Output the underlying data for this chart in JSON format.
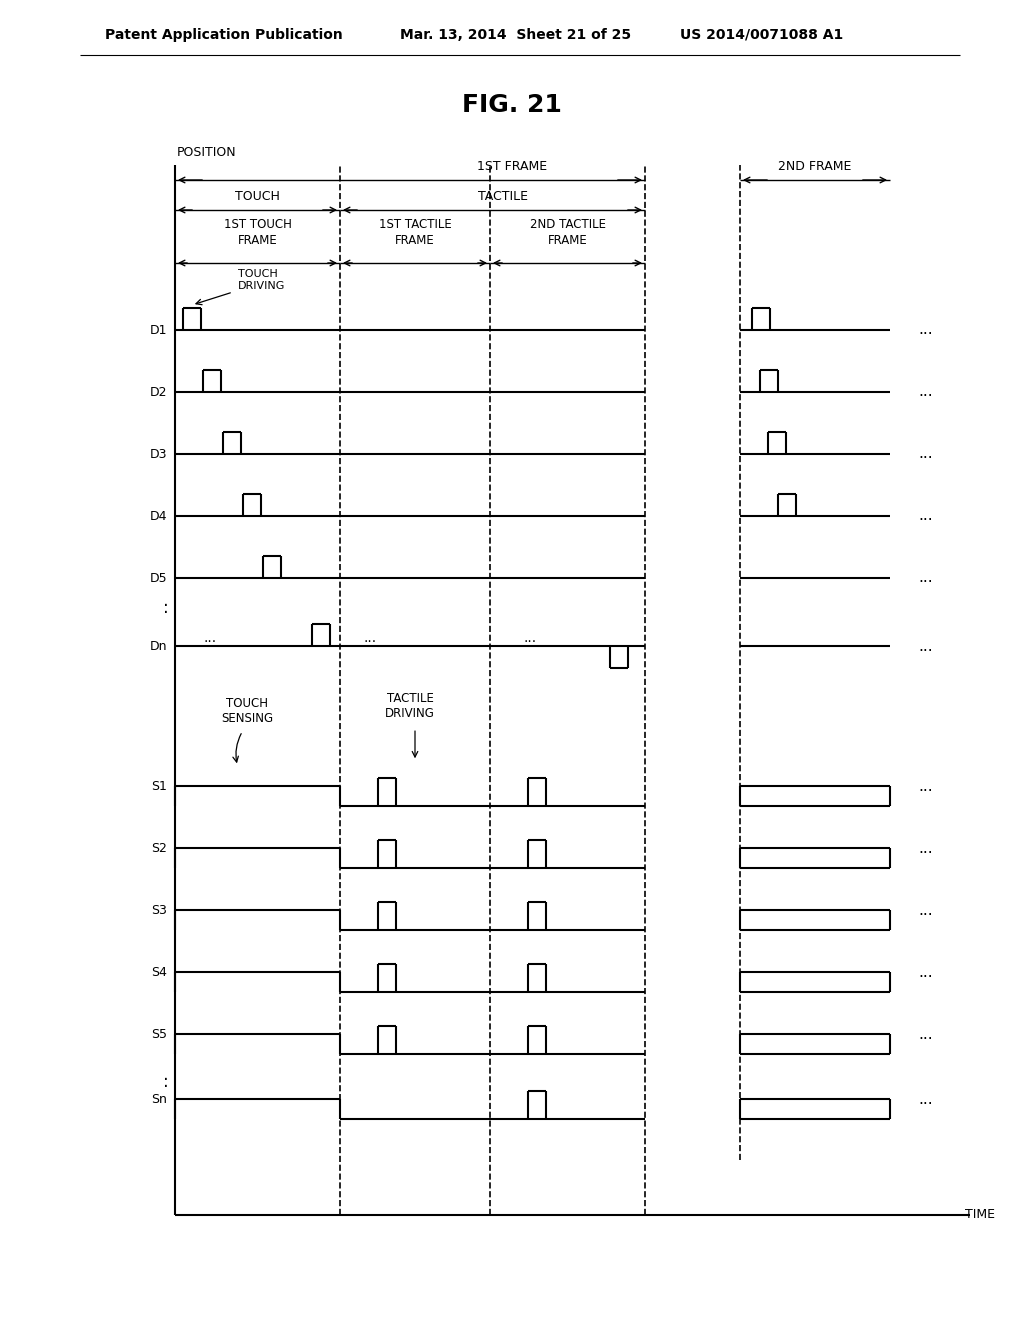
{
  "title": "FIG. 21",
  "header_left": "Patent Application Publication",
  "header_center": "Mar. 13, 2014  Sheet 21 of 25",
  "header_right": "US 2014/0071088 A1",
  "bg_color": "#ffffff"
}
